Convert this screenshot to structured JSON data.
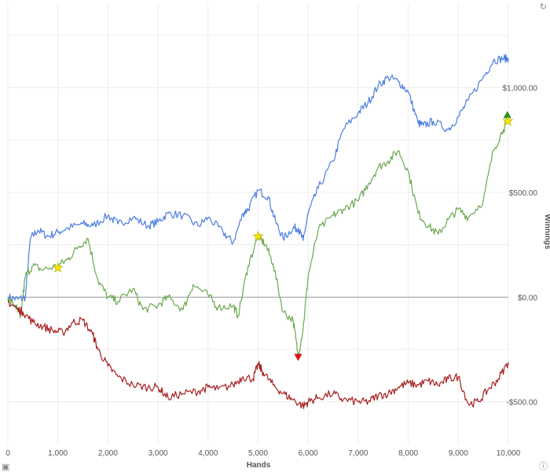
{
  "chart_data": {
    "type": "line",
    "title": "",
    "xlabel": "Hands",
    "ylabel": "Winnings",
    "xlim": [
      0,
      10000
    ],
    "ylim": [
      -700,
      1400
    ],
    "x_ticks": [
      0,
      1000,
      2000,
      3000,
      4000,
      5000,
      6000,
      7000,
      8000,
      9000,
      10000
    ],
    "x_tick_labels": [
      "0",
      "1,000",
      "2,000",
      "3,000",
      "4,000",
      "5,000",
      "6,000",
      "7,000",
      "8,000",
      "9,000",
      "10,000"
    ],
    "y_ticks": [
      1000,
      500,
      0,
      -500
    ],
    "y_tick_labels": [
      "$1,000.00",
      "$500.00",
      "$0.00",
      "-$500.00"
    ],
    "grid": true,
    "legend": "none",
    "series": [
      {
        "color": "#4a7de0",
        "x": [
          0,
          200,
          350,
          450,
          600,
          800,
          1000,
          1200,
          1500,
          1700,
          2000,
          2200,
          2500,
          2800,
          3000,
          3200,
          3500,
          3800,
          4000,
          4300,
          4500,
          4700,
          4800,
          5000,
          5200,
          5350,
          5500,
          5700,
          5800,
          5900,
          6000,
          6200,
          6500,
          6700,
          7000,
          7200,
          7400,
          7600,
          7800,
          8000,
          8200,
          8300,
          8500,
          8800,
          9000,
          9200,
          9500,
          9700,
          9900,
          10000
        ],
        "y": [
          0,
          -10,
          0,
          280,
          320,
          290,
          310,
          330,
          350,
          340,
          390,
          350,
          380,
          340,
          360,
          400,
          390,
          340,
          380,
          310,
          260,
          400,
          420,
          510,
          480,
          360,
          280,
          330,
          330,
          270,
          400,
          520,
          650,
          800,
          880,
          930,
          1010,
          1050,
          1030,
          980,
          830,
          820,
          840,
          800,
          860,
          940,
          1050,
          1130,
          1140,
          1140
        ]
      },
      {
        "color": "#6aa84f",
        "x": [
          0,
          150,
          250,
          350,
          500,
          700,
          1000,
          1200,
          1400,
          1600,
          1800,
          2000,
          2200,
          2500,
          2700,
          3000,
          3200,
          3500,
          3700,
          4000,
          4200,
          4500,
          4600,
          4800,
          5000,
          5150,
          5300,
          5500,
          5700,
          5800,
          5900,
          6000,
          6200,
          6500,
          6700,
          7000,
          7200,
          7400,
          7600,
          7800,
          8000,
          8200,
          8400,
          8600,
          8800,
          9000,
          9200,
          9500,
          9700,
          9900,
          10000
        ],
        "y": [
          -10,
          -40,
          -100,
          100,
          150,
          130,
          150,
          180,
          240,
          280,
          80,
          0,
          -20,
          40,
          -60,
          -40,
          0,
          -60,
          60,
          10,
          -50,
          -40,
          -90,
          150,
          290,
          250,
          160,
          -70,
          -110,
          -280,
          -150,
          100,
          320,
          390,
          420,
          460,
          540,
          620,
          650,
          700,
          600,
          400,
          340,
          300,
          370,
          420,
          380,
          460,
          700,
          800,
          850
        ]
      },
      {
        "color": "#a81e1e",
        "x": [
          0,
          200,
          300,
          500,
          700,
          900,
          1100,
          1300,
          1500,
          1700,
          1800,
          2000,
          2200,
          2500,
          2800,
          3000,
          3200,
          3500,
          3800,
          4000,
          4200,
          4500,
          4700,
          4900,
          5000,
          5100,
          5300,
          5500,
          5700,
          5900,
          6000,
          6200,
          6500,
          6700,
          7000,
          7200,
          7400,
          7600,
          7800,
          8000,
          8200,
          8400,
          8600,
          8800,
          9000,
          9200,
          9400,
          9600,
          9800,
          10000
        ],
        "y": [
          -20,
          -60,
          -70,
          -120,
          -140,
          -160,
          -170,
          -120,
          -110,
          -180,
          -250,
          -330,
          -380,
          -420,
          -430,
          -430,
          -480,
          -460,
          -450,
          -430,
          -440,
          -420,
          -380,
          -390,
          -320,
          -360,
          -420,
          -460,
          -490,
          -520,
          -500,
          -480,
          -460,
          -490,
          -500,
          -500,
          -470,
          -460,
          -430,
          -410,
          -420,
          -400,
          -420,
          -390,
          -380,
          -510,
          -500,
          -440,
          -390,
          -310
        ]
      }
    ],
    "markers": [
      {
        "shape": "star",
        "x": 1000,
        "y": 140,
        "color": "#f5e400"
      },
      {
        "shape": "star",
        "x": 5000,
        "y": 290,
        "color": "#f5e400"
      },
      {
        "shape": "triangle-down",
        "x": 5800,
        "y": -290,
        "color": "#e01010"
      },
      {
        "shape": "triangle-up",
        "x": 9980,
        "y": 870,
        "color": "#1e8c1e"
      },
      {
        "shape": "star",
        "x": 9990,
        "y": 840,
        "color": "#f5e400"
      }
    ]
  },
  "corner_icons": {
    "top_right": "refresh-icon",
    "bottom_left": "camera-icon",
    "bottom_right": "info-icon"
  }
}
